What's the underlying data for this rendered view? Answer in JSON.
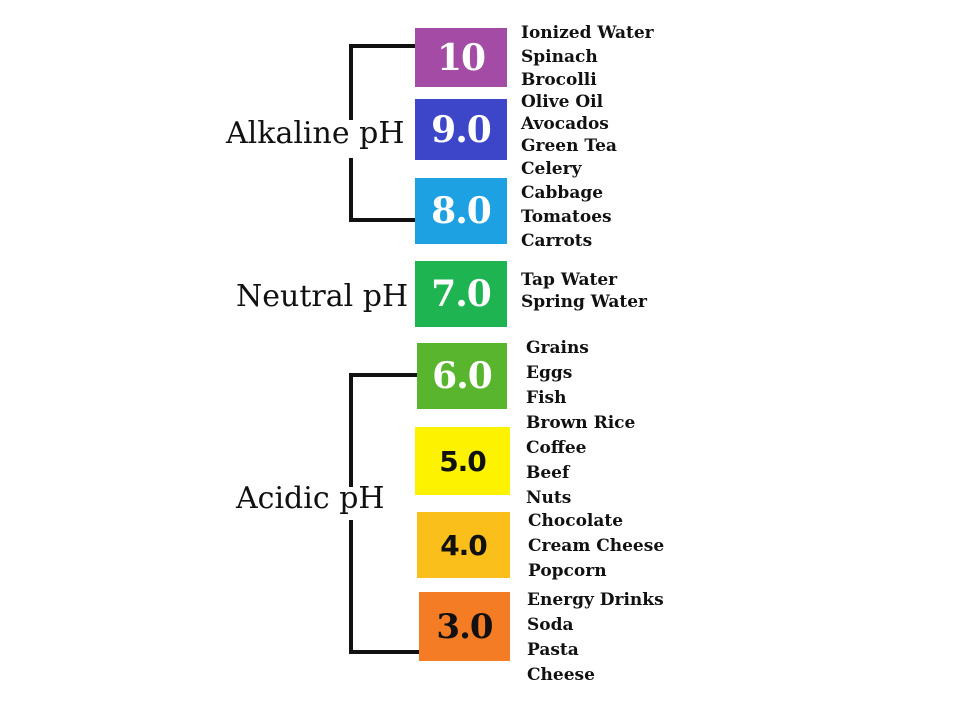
{
  "groups": {
    "alkaline": "Alkaline pH",
    "neutral": "Neutral pH",
    "acidic": "Acidic pH"
  },
  "levels": [
    {
      "value": "10",
      "color": "#a34ba5",
      "foods": [
        "Ionized Water",
        "Spinach",
        "Brocolli"
      ]
    },
    {
      "value": "9.0",
      "color": "#3d46c8",
      "foods": [
        "Olive Oil",
        "Avocados",
        "Green Tea"
      ]
    },
    {
      "value": "8.0",
      "color": "#1ea1e3",
      "foods": [
        "Celery",
        "Cabbage",
        "Tomatoes",
        "Carrots"
      ]
    },
    {
      "value": "7.0",
      "color": "#1eb451",
      "foods": [
        "Tap Water",
        "Spring Water"
      ]
    },
    {
      "value": "6.0",
      "color": "#58b52d",
      "foods": [
        "Grains",
        "Eggs",
        "Fish"
      ]
    },
    {
      "value": "5.0",
      "color": "#fdf200",
      "foods": [
        "Brown Rice",
        "Coffee",
        "Beef",
        "Nuts"
      ]
    },
    {
      "value": "4.0",
      "color": "#fbbf1b",
      "foods": [
        "Chocolate",
        "Cream Cheese",
        "Popcorn"
      ]
    },
    {
      "value": "3.0",
      "color": "#f47c24",
      "foods": [
        "Energy Drinks",
        "Soda",
        "Pasta",
        "Cheese"
      ]
    }
  ]
}
